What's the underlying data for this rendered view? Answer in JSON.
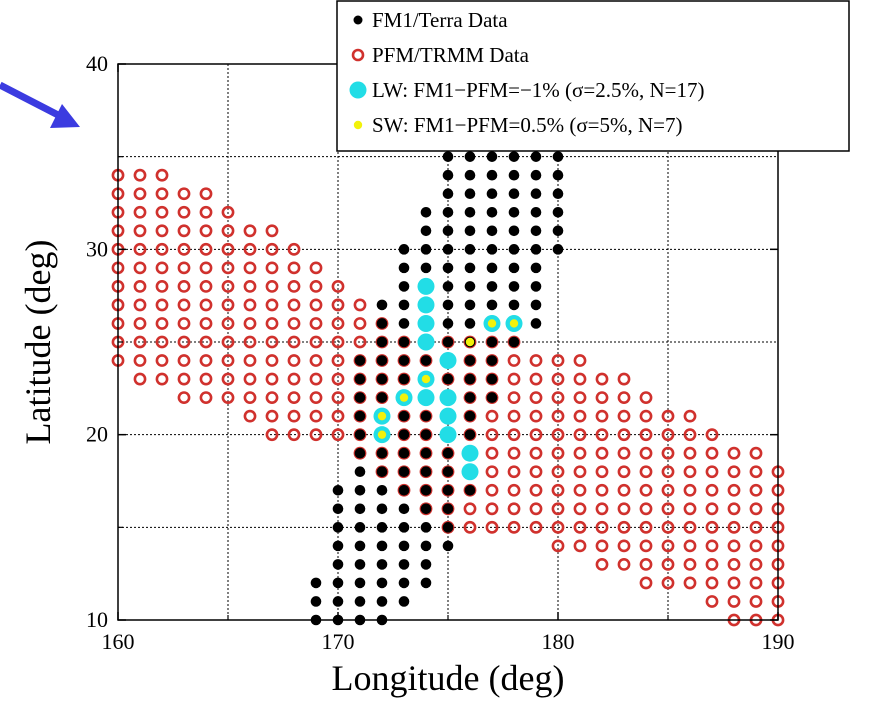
{
  "chart_data": {
    "type": "scatter",
    "title": "",
    "xlabel": "Longitude (deg)",
    "ylabel": "Latitude (deg)",
    "xlim": [
      160,
      190
    ],
    "ylim": [
      10,
      40
    ],
    "xticks": [
      "160",
      "170",
      "180",
      "190"
    ],
    "yticks": [
      "10",
      "20",
      "30",
      "40"
    ],
    "grid": true,
    "legend_position": "top-right",
    "colors": {
      "terra": "#000000",
      "trmm": "#d0312d",
      "lw": "#22dde6",
      "sw": "#f2f20a",
      "arrow": "#3b3be0"
    },
    "legend": [
      "FM1/Terra Data",
      "PFM/TRMM Data",
      "LW: FM1−PFM=−1% (σ=2.5%, N=17)",
      "SW: FM1−PFM=0.5% (σ=5%, N=7)"
    ],
    "series": [
      {
        "name": "PFM/TRMM Data",
        "marker": "open-circle",
        "row_spans": [
          [
            34,
            160,
            162
          ],
          [
            33,
            160,
            164
          ],
          [
            32,
            160,
            165
          ],
          [
            31,
            160,
            167
          ],
          [
            30,
            160,
            168
          ],
          [
            29,
            160,
            169
          ],
          [
            28,
            160,
            170
          ],
          [
            27,
            160,
            171
          ],
          [
            26,
            160,
            172
          ],
          [
            25,
            160,
            178
          ],
          [
            24,
            160,
            181
          ],
          [
            23,
            161,
            183
          ],
          [
            22,
            163,
            184
          ],
          [
            21,
            166,
            186
          ],
          [
            20,
            167,
            187
          ],
          [
            19,
            171,
            189
          ],
          [
            18,
            172,
            190
          ],
          [
            17,
            173,
            190
          ],
          [
            16,
            174,
            190
          ],
          [
            15,
            175,
            190
          ],
          [
            14,
            180,
            190
          ],
          [
            13,
            182,
            190
          ],
          [
            12,
            184,
            190
          ],
          [
            11,
            187,
            190
          ],
          [
            10,
            188,
            190
          ]
        ]
      },
      {
        "name": "FM1/Terra Data",
        "marker": "filled-circle",
        "row_spans": [
          [
            35,
            175,
            180
          ],
          [
            34,
            175,
            180
          ],
          [
            33,
            175,
            180
          ],
          [
            32,
            174,
            180
          ],
          [
            31,
            174,
            180
          ],
          [
            30,
            173,
            180
          ],
          [
            29,
            173,
            179
          ],
          [
            28,
            173,
            179
          ],
          [
            27,
            172,
            179
          ],
          [
            26,
            172,
            179
          ],
          [
            25,
            172,
            178
          ],
          [
            24,
            171,
            177
          ],
          [
            23,
            171,
            177
          ],
          [
            22,
            171,
            177
          ],
          [
            21,
            171,
            176
          ],
          [
            20,
            171,
            176
          ],
          [
            19,
            171,
            176
          ],
          [
            18,
            171,
            176
          ],
          [
            17,
            170,
            176
          ],
          [
            16,
            170,
            175
          ],
          [
            15,
            170,
            175
          ],
          [
            14,
            170,
            175
          ],
          [
            13,
            170,
            174
          ],
          [
            12,
            169,
            174
          ],
          [
            11,
            169,
            173
          ],
          [
            10,
            169,
            172
          ]
        ]
      },
      {
        "name": "LW: FM1−PFM=−1% (σ=2.5%, N=17)",
        "marker": "filled-circle",
        "points": [
          [
            174,
            28
          ],
          [
            174,
            27
          ],
          [
            174,
            26
          ],
          [
            174,
            25
          ],
          [
            175,
            24
          ],
          [
            174,
            23
          ],
          [
            174,
            22
          ],
          [
            175,
            22
          ],
          [
            175,
            21
          ],
          [
            175,
            20
          ],
          [
            176,
            19
          ],
          [
            176,
            18
          ],
          [
            177,
            26
          ],
          [
            178,
            26
          ],
          [
            173,
            22
          ],
          [
            172,
            21
          ],
          [
            172,
            20
          ]
        ]
      },
      {
        "name": "SW: FM1−PFM=0.5% (σ=5%, N=7)",
        "marker": "filled-circle",
        "points": [
          [
            177,
            26
          ],
          [
            178,
            26
          ],
          [
            176,
            25
          ],
          [
            174,
            23
          ],
          [
            173,
            22
          ],
          [
            172,
            21
          ],
          [
            172,
            20
          ]
        ]
      }
    ]
  }
}
